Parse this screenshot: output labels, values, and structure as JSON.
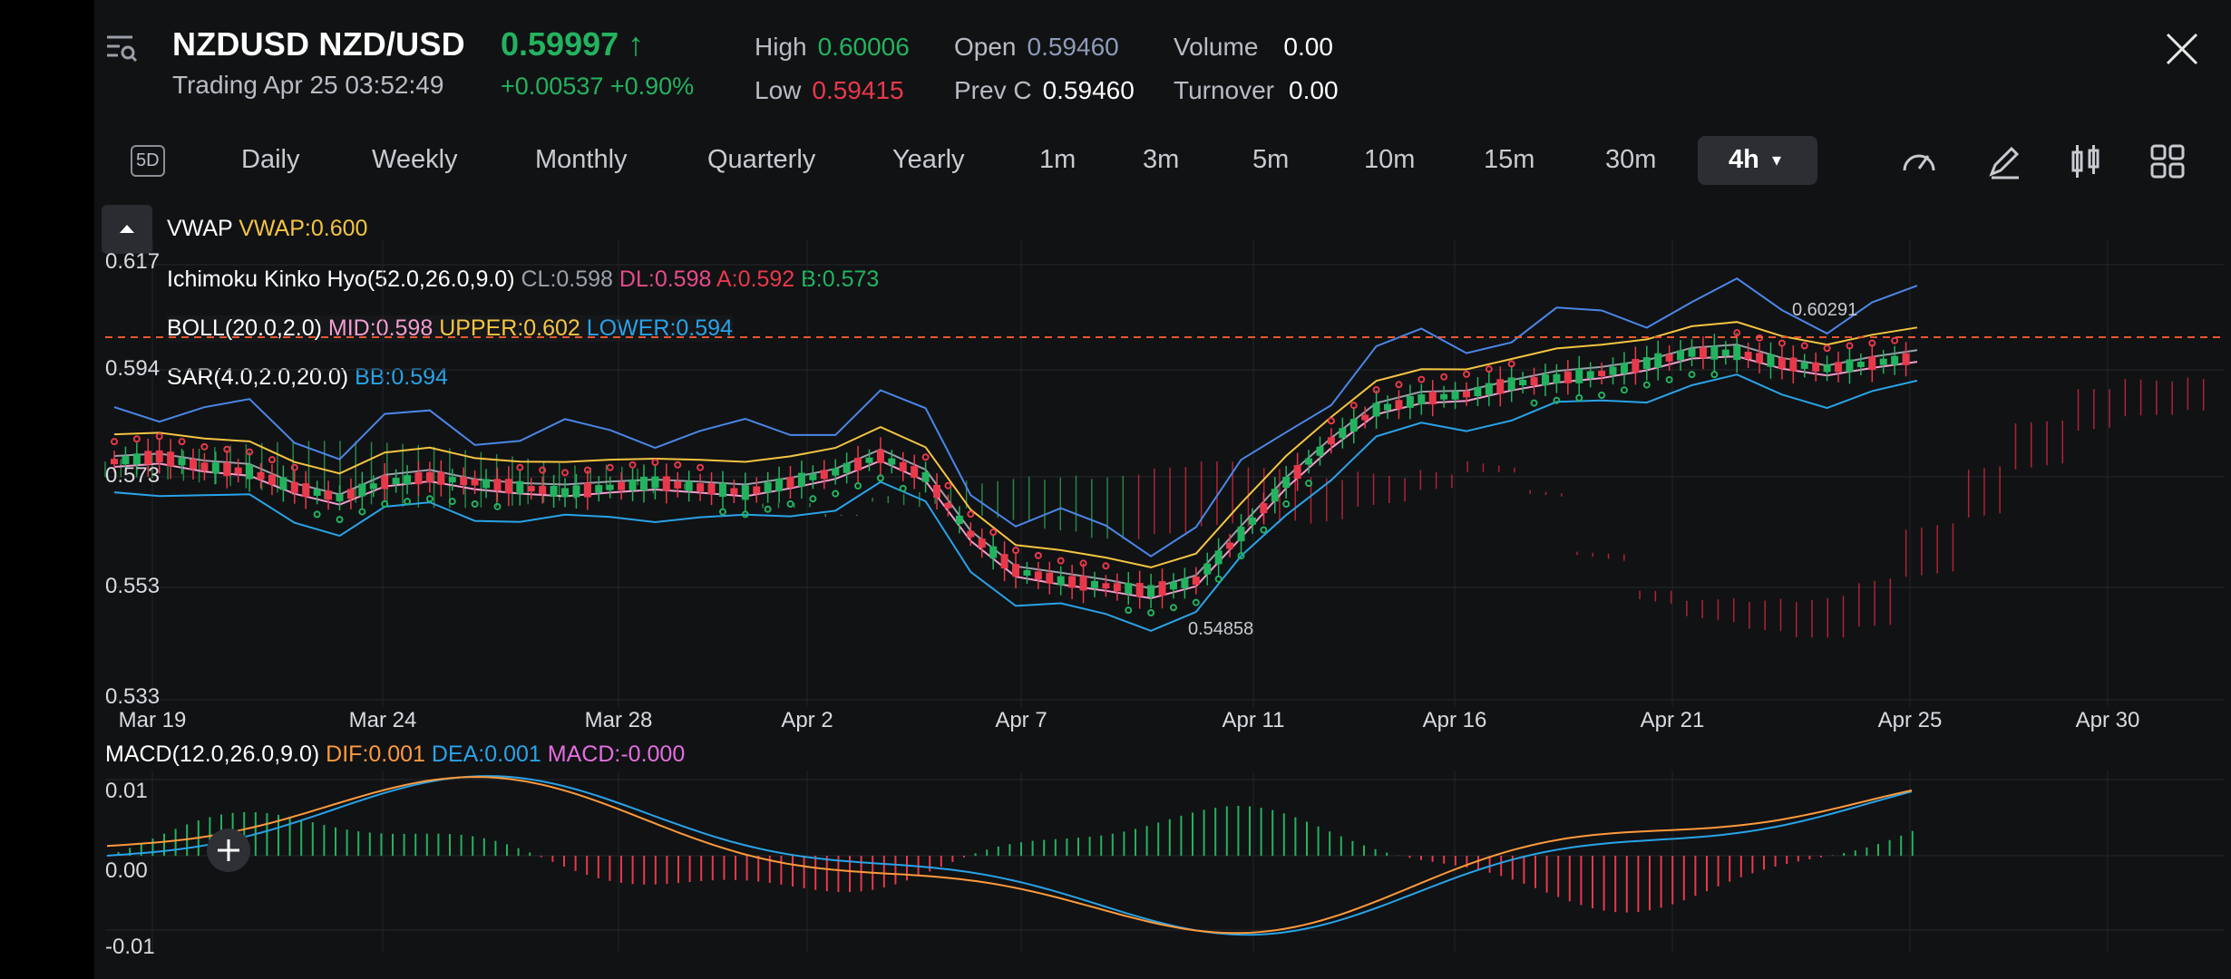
{
  "header": {
    "symbol": "NZDUSD NZD/USD",
    "status": "Trading Apr 25 03:52:49",
    "price": "0.59997",
    "change": "+0.00537 +0.90%",
    "stats": [
      {
        "k": "High",
        "v": "0.60006",
        "color": "#23b35f"
      },
      {
        "k": "Low",
        "v": "0.59415",
        "color": "#e8394b"
      },
      {
        "k": "Open",
        "v": "0.59460",
        "color": "#8e9bb8"
      },
      {
        "k": "Prev C",
        "v": "0.59460",
        "color": "#ffffff"
      },
      {
        "k": "Volume",
        "v": "0.00",
        "color": "#ffffff"
      },
      {
        "k": "Turnover",
        "v": "0.00",
        "color": "#ffffff"
      }
    ]
  },
  "timeframes": [
    "5D",
    "Daily",
    "Weekly",
    "Monthly",
    "Quarterly",
    "Yearly",
    "1m",
    "3m",
    "5m",
    "10m",
    "15m",
    "30m",
    "4h"
  ],
  "active_timeframe": "4h",
  "toolbar": [
    "gauge-icon",
    "pencil-icon",
    "candlestick-icon",
    "grid-icon"
  ],
  "legend": {
    "vwap": {
      "name": "VWAP",
      "v": "VWAP:0.600"
    },
    "ichimoku": {
      "name": "Ichimoku Kinko Hyo(52.0,26.0,9.0)",
      "cl": "CL:0.598",
      "dl": "DL:0.598",
      "a": "A:0.592",
      "b": "B:0.573"
    },
    "boll": {
      "name": "BOLL(20.0,2.0)",
      "mid": "MID:0.598",
      "upper": "UPPER:0.602",
      "lower": "LOWER:0.594"
    },
    "sar": {
      "name": "SAR(4.0,2.0,20.0)",
      "bb": "BB:0.594"
    },
    "macd": {
      "name": "MACD(12.0,26.0,9.0)",
      "dif": "DIF:0.001",
      "dea": "DEA:0.001",
      "macd": "MACD:-0.000"
    }
  },
  "chart_data": [
    {
      "type": "line",
      "title": "",
      "y_ticks": [
        "0.617",
        "0.594",
        "0.573",
        "0.553",
        "0.533"
      ],
      "ylim": [
        0.533,
        0.617
      ],
      "x_ticks": [
        "Mar 19",
        "Mar 24",
        "Mar 28",
        "Apr 2",
        "Apr 7",
        "Apr 11",
        "Apr 16",
        "Apr 21",
        "Apr 25",
        "Apr 30"
      ],
      "annotations": [
        "0.60291",
        "0.54858"
      ],
      "series": [
        {
          "values": [
            0.579,
            0.58,
            0.578,
            0.577,
            0.574,
            0.572,
            0.575,
            0.576,
            0.575,
            0.574,
            0.573,
            0.574,
            0.575,
            0.574,
            0.573,
            0.575,
            0.577,
            0.58,
            0.576,
            0.565,
            0.558,
            0.556,
            0.555,
            0.554,
            0.556,
            0.565,
            0.575,
            0.583,
            0.589,
            0.591,
            0.592,
            0.594,
            0.595,
            0.596,
            0.598,
            0.6,
            0.6,
            0.598,
            0.597,
            0.598,
            0.599
          ]
        }
      ],
      "grid": true
    },
    {
      "type": "bar",
      "title": "",
      "y_ticks": [
        "0.01",
        "0.00",
        "-0.01"
      ],
      "ylim": [
        -0.01,
        0.01
      ]
    }
  ],
  "colors": {
    "up": "#23b35f",
    "down": "#e8394b",
    "dif": "#ff9a3c",
    "dea": "#29a3e8",
    "macd": "#e46ee0",
    "vwap": "#f4c542",
    "cl": "#9aa1ab",
    "dl": "#e84b8a",
    "boll_mid": "#f29ed0",
    "boll_upper": "#f4c542",
    "boll_lower": "#29a3e8"
  }
}
